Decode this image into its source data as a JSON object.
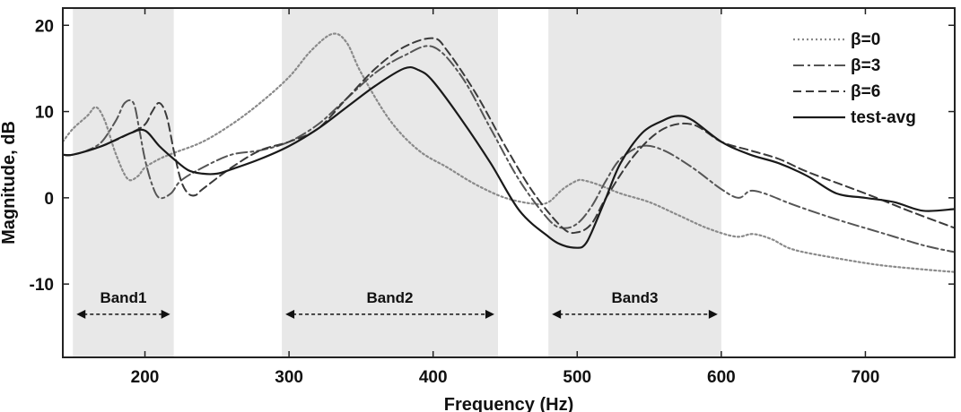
{
  "chart_data": {
    "type": "line",
    "xlabel": "Frequency (Hz)",
    "ylabel": "Magnitude, dB",
    "xlim": [
      143,
      762
    ],
    "ylim": [
      -18.5,
      22
    ],
    "xticks": [
      200,
      300,
      400,
      500,
      600,
      700
    ],
    "yticks": [
      -10,
      0,
      10,
      20
    ],
    "ytick_labels": [
      "-10",
      "0",
      "10",
      "20"
    ],
    "grid": false,
    "legend_position": "top-right",
    "bands": [
      {
        "label": "Band1",
        "x0": 150,
        "x1": 220,
        "y": -13.5
      },
      {
        "label": "Band2",
        "x0": 295,
        "x1": 445,
        "y": -13.5
      },
      {
        "label": "Band3",
        "x0": 480,
        "x1": 600,
        "y": -13.5
      }
    ],
    "series": [
      {
        "name": "β=0",
        "style": "dotted",
        "color": "#8a8a8a",
        "x": [
          143,
          150,
          160,
          166,
          172,
          180,
          188,
          195,
          200,
          210,
          220,
          240,
          260,
          280,
          300,
          315,
          330,
          340,
          350,
          370,
          390,
          410,
          430,
          450,
          470,
          480,
          490,
          500,
          505,
          515,
          530,
          550,
          570,
          590,
          610,
          622,
          635,
          650,
          680,
          710,
          740,
          762
        ],
        "y": [
          6.5,
          8,
          9.5,
          10.5,
          9,
          5,
          2.2,
          2.5,
          3.5,
          4.5,
          5.2,
          6.5,
          8.5,
          11,
          14,
          17,
          19,
          18,
          14.5,
          9,
          5.5,
          3.5,
          1.5,
          0,
          -0.7,
          -0.5,
          1,
          2,
          2,
          1.5,
          0.5,
          -0.5,
          -2,
          -3.5,
          -4.5,
          -4.2,
          -4.8,
          -6,
          -7,
          -7.8,
          -8.3,
          -8.6
        ]
      },
      {
        "name": "β=3",
        "style": "dashdot",
        "color": "#555555",
        "x": [
          143,
          150,
          160,
          170,
          180,
          186,
          192,
          196,
          200,
          205,
          210,
          218,
          225,
          240,
          260,
          280,
          300,
          320,
          340,
          360,
          380,
          400,
          420,
          440,
          460,
          480,
          490,
          500,
          510,
          520,
          530,
          545,
          560,
          580,
          600,
          612,
          620,
          630,
          650,
          680,
          710,
          740,
          762
        ],
        "y": [
          5,
          5,
          5.5,
          6.5,
          9,
          11,
          11,
          8,
          4.5,
          1.5,
          0,
          0.5,
          2,
          3.5,
          5,
          5.5,
          6.5,
          8.5,
          11.5,
          14.5,
          16.5,
          17.5,
          14,
          8,
          2,
          -2.5,
          -3.5,
          -3,
          -1,
          2,
          4.5,
          6,
          5.5,
          3.5,
          1,
          0,
          0.8,
          0.5,
          -0.8,
          -2.5,
          -4,
          -5.5,
          -6.3
        ]
      },
      {
        "name": "β=6",
        "style": "dashed",
        "color": "#3a3a3a",
        "x": [
          143,
          150,
          170,
          190,
          200,
          205,
          210,
          215,
          220,
          225,
          230,
          235,
          240,
          260,
          280,
          300,
          320,
          340,
          360,
          380,
          400,
          410,
          430,
          450,
          470,
          490,
          500,
          510,
          520,
          540,
          560,
          580,
          600,
          620,
          640,
          660,
          700,
          730,
          762
        ],
        "y": [
          5,
          5,
          6,
          7.5,
          8.5,
          10,
          11,
          9.5,
          5.5,
          2,
          0.5,
          0.3,
          1,
          3.5,
          5.5,
          6.5,
          8,
          11.5,
          15,
          17.5,
          18.5,
          17,
          12,
          6,
          0.5,
          -3.5,
          -4,
          -3,
          0,
          5,
          8,
          8.5,
          6.5,
          5.5,
          4.5,
          3,
          0.5,
          -1.5,
          -3.5
        ]
      },
      {
        "name": "test-avg",
        "style": "solid",
        "color": "#1a1a1a",
        "x": [
          143,
          150,
          170,
          190,
          200,
          210,
          220,
          230,
          240,
          250,
          260,
          280,
          300,
          320,
          340,
          360,
          380,
          390,
          400,
          420,
          440,
          460,
          480,
          490,
          500,
          505,
          510,
          520,
          530,
          545,
          560,
          570,
          580,
          600,
          620,
          640,
          660,
          680,
          700,
          720,
          740,
          762
        ],
        "y": [
          5,
          5,
          6,
          7.5,
          7.8,
          6,
          4.5,
          3.2,
          2.8,
          2.8,
          3.3,
          4.5,
          6,
          8,
          10.5,
          13,
          15,
          14.8,
          13.5,
          9,
          4,
          -1.5,
          -4.5,
          -5.5,
          -5.8,
          -5.5,
          -4,
          0,
          4,
          7.5,
          9,
          9.5,
          9,
          6.5,
          5,
          4,
          2.5,
          0.5,
          0,
          -0.5,
          -1.5,
          -1.3
        ]
      }
    ]
  }
}
